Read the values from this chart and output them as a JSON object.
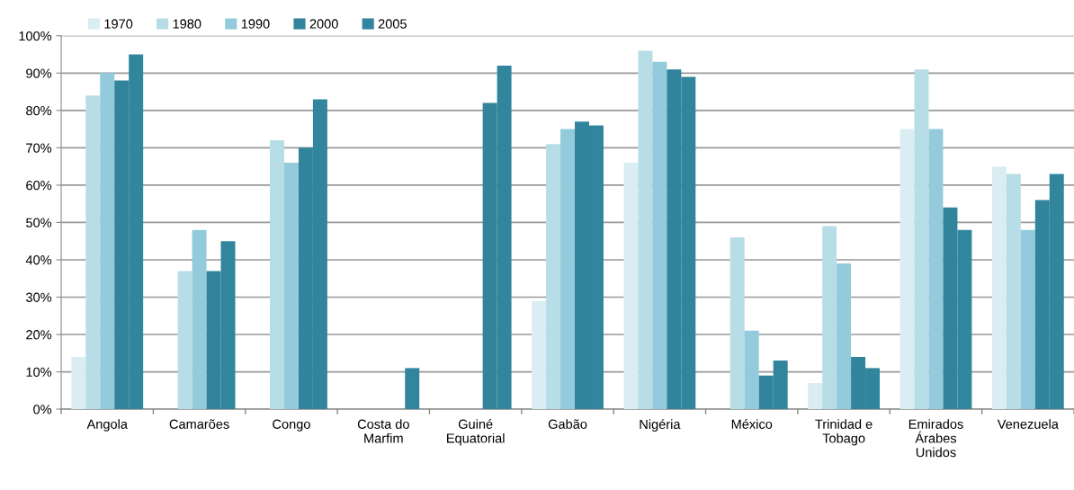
{
  "chart_data": {
    "type": "bar",
    "categories": [
      "Angola",
      "Camarões",
      "Congo",
      "Costa do\nMarfim",
      "Guiné\nEquatorial",
      "Gabão",
      "Nigéria",
      "México",
      "Trinidad e\nTobago",
      "Emirados\nÁrabes\nUnidos",
      "Venezuela"
    ],
    "series": [
      {
        "name": "1970",
        "color": "#daedf3",
        "values": [
          14,
          null,
          null,
          null,
          null,
          29,
          66,
          null,
          7,
          75,
          65
        ]
      },
      {
        "name": "1980",
        "color": "#b7dde7",
        "values": [
          84,
          37,
          72,
          null,
          null,
          71,
          96,
          46,
          49,
          91,
          63
        ]
      },
      {
        "name": "1990",
        "color": "#93cbdc",
        "values": [
          90,
          48,
          66,
          null,
          null,
          75,
          93,
          21,
          39,
          75,
          48
        ]
      },
      {
        "name": "2000",
        "color": "#31849b",
        "values": [
          88,
          37,
          70,
          null,
          82,
          77,
          91,
          9,
          14,
          54,
          56
        ]
      },
      {
        "name": "2005",
        "color": "#31859c",
        "values": [
          95,
          45,
          83,
          11,
          92,
          76,
          89,
          13,
          11,
          48,
          63
        ]
      }
    ],
    "ylim": [
      0,
      100
    ],
    "yticks": [
      {
        "value": 0,
        "label": "0%"
      },
      {
        "value": 10,
        "label": "10%"
      },
      {
        "value": 20,
        "label": "20%"
      },
      {
        "value": 30,
        "label": "30%"
      },
      {
        "value": 40,
        "label": "40%"
      },
      {
        "value": 50,
        "label": "50%"
      },
      {
        "value": 60,
        "label": "60%"
      },
      {
        "value": 70,
        "label": "70%"
      },
      {
        "value": 80,
        "label": "80%"
      },
      {
        "value": 90,
        "label": "90%"
      },
      {
        "value": 100,
        "label": "100%"
      }
    ],
    "grid": "y",
    "legend": "top left"
  }
}
